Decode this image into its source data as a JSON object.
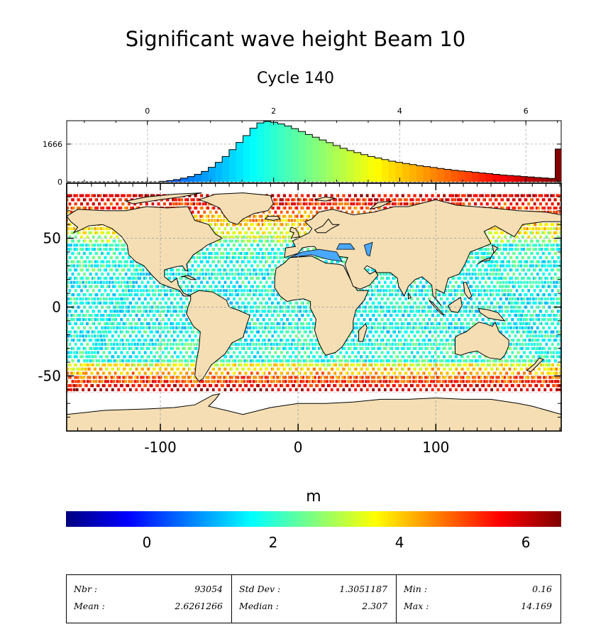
{
  "title": "Significant wave height Beam 10",
  "subtitle": "Cycle 140",
  "colorbar": {
    "unit": "m",
    "ticks": [
      "0",
      "2",
      "4",
      "6"
    ],
    "range": [
      -1.28,
      6.56
    ],
    "colors": [
      "#00007f",
      "#0000ff",
      "#007fff",
      "#00ffff",
      "#7fff7f",
      "#ffff00",
      "#ff7f00",
      "#ff0000",
      "#7f0000"
    ]
  },
  "chart_data": [
    {
      "type": "bar",
      "name": "histogram",
      "x_ticks": [
        "0",
        "2",
        "4",
        "6"
      ],
      "xlim": [
        -1.28,
        6.56
      ],
      "y_ticks": [
        "0",
        "1666"
      ],
      "ylim": [
        0,
        2700
      ],
      "bin_width": 0.11,
      "bins": [
        {
          "x": 0.25,
          "y": 20
        },
        {
          "x": 0.36,
          "y": 50
        },
        {
          "x": 0.47,
          "y": 100
        },
        {
          "x": 0.58,
          "y": 160
        },
        {
          "x": 0.69,
          "y": 230
        },
        {
          "x": 0.8,
          "y": 330
        },
        {
          "x": 0.91,
          "y": 460
        },
        {
          "x": 1.02,
          "y": 640
        },
        {
          "x": 1.13,
          "y": 860
        },
        {
          "x": 1.24,
          "y": 1120
        },
        {
          "x": 1.35,
          "y": 1420
        },
        {
          "x": 1.46,
          "y": 1740
        },
        {
          "x": 1.57,
          "y": 2040
        },
        {
          "x": 1.68,
          "y": 2370
        },
        {
          "x": 1.79,
          "y": 2600
        },
        {
          "x": 1.9,
          "y": 2670
        },
        {
          "x": 2.01,
          "y": 2630
        },
        {
          "x": 2.12,
          "y": 2560
        },
        {
          "x": 2.23,
          "y": 2470
        },
        {
          "x": 2.34,
          "y": 2350
        },
        {
          "x": 2.45,
          "y": 2220
        },
        {
          "x": 2.56,
          "y": 2090
        },
        {
          "x": 2.67,
          "y": 1970
        },
        {
          "x": 2.78,
          "y": 1850
        },
        {
          "x": 2.89,
          "y": 1730
        },
        {
          "x": 3.0,
          "y": 1600
        },
        {
          "x": 3.11,
          "y": 1480
        },
        {
          "x": 3.22,
          "y": 1380
        },
        {
          "x": 3.33,
          "y": 1290
        },
        {
          "x": 3.44,
          "y": 1200
        },
        {
          "x": 3.55,
          "y": 1120
        },
        {
          "x": 3.66,
          "y": 1050
        },
        {
          "x": 3.77,
          "y": 980
        },
        {
          "x": 3.88,
          "y": 910
        },
        {
          "x": 3.99,
          "y": 860
        },
        {
          "x": 4.1,
          "y": 810
        },
        {
          "x": 4.21,
          "y": 760
        },
        {
          "x": 4.32,
          "y": 710
        },
        {
          "x": 4.43,
          "y": 670
        },
        {
          "x": 4.54,
          "y": 630
        },
        {
          "x": 4.65,
          "y": 590
        },
        {
          "x": 4.76,
          "y": 550
        },
        {
          "x": 4.87,
          "y": 510
        },
        {
          "x": 4.98,
          "y": 480
        },
        {
          "x": 5.09,
          "y": 450
        },
        {
          "x": 5.2,
          "y": 420
        },
        {
          "x": 5.31,
          "y": 390
        },
        {
          "x": 5.42,
          "y": 360
        },
        {
          "x": 5.53,
          "y": 330
        },
        {
          "x": 5.64,
          "y": 300
        },
        {
          "x": 5.75,
          "y": 280
        },
        {
          "x": 5.86,
          "y": 260
        },
        {
          "x": 5.97,
          "y": 230
        },
        {
          "x": 6.08,
          "y": 210
        },
        {
          "x": 6.19,
          "y": 190
        },
        {
          "x": 6.3,
          "y": 170
        },
        {
          "x": 6.41,
          "y": 150
        },
        {
          "x": 6.52,
          "y": 1450
        }
      ]
    },
    {
      "type": "heatmap",
      "name": "map",
      "x_ticks": [
        "-100",
        "0",
        "100"
      ],
      "y_ticks": [
        "50",
        "0",
        "-50"
      ],
      "xlim": [
        -168,
        191
      ],
      "ylim": [
        -90,
        90
      ],
      "grid": true
    }
  ],
  "stats": {
    "col1": [
      {
        "label": "Nbr :",
        "value": "93054"
      },
      {
        "label": "Mean :",
        "value": "2.6261266"
      }
    ],
    "col2": [
      {
        "label": "Std Dev :",
        "value": "1.3051187"
      },
      {
        "label": "Median :",
        "value": "2.307"
      }
    ],
    "col3": [
      {
        "label": "Min :",
        "value": "0.16"
      },
      {
        "label": "Max :",
        "value": "14.169"
      }
    ]
  }
}
